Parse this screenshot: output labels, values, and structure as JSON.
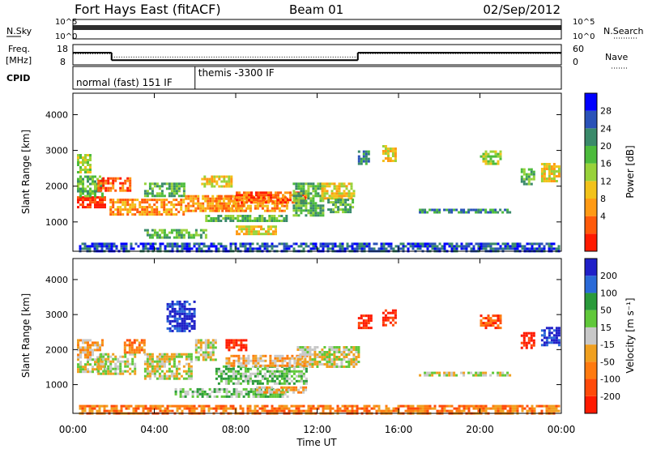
{
  "header": {
    "station": "Fort Hays East (fitACF)",
    "beam": "Beam 01",
    "date": "02/Sep/2012"
  },
  "noise_panel": {
    "left_label": "N.Sky",
    "right_label": "N.Search",
    "left_ticks": [
      "10^5",
      "10^0"
    ],
    "right_ticks": [
      "10^5",
      "10^0"
    ]
  },
  "freq_panel": {
    "left_label_1": "Freq.",
    "left_label_2": "[MHz]",
    "right_label": "Nave",
    "left_ticks": [
      "18",
      "8"
    ],
    "right_ticks": [
      "60",
      "0"
    ],
    "freq_steps": [
      {
        "t0": 0.0,
        "t1": 1.9,
        "value": 14.0
      },
      {
        "t0": 1.9,
        "t1": 14.0,
        "value": 10.3
      },
      {
        "t0": 14.0,
        "t1": 24.0,
        "value": 14.0
      }
    ],
    "nave_steps": [
      {
        "t0": 0.0,
        "t1": 1.9,
        "value": 33
      },
      {
        "t0": 1.9,
        "t1": 14.0,
        "value": 23
      },
      {
        "t0": 14.0,
        "t1": 24.0,
        "value": 33
      }
    ]
  },
  "cpid_panel": {
    "label": "CPID",
    "segments": [
      {
        "t0": 0.0,
        "t1": 6.0,
        "text": "normal (fast) 151 IF"
      },
      {
        "t0": 6.0,
        "t1": 24.0,
        "text": "themis -3300 IF"
      }
    ]
  },
  "x_axis": {
    "label": "Time UT",
    "ticks": [
      "00:00",
      "04:00",
      "08:00",
      "12:00",
      "16:00",
      "20:00",
      "00:00"
    ]
  },
  "chart_data": [
    {
      "type": "heatmap",
      "name": "power",
      "ylabel": "Slant Range [km]",
      "yticks": [
        "1000",
        "2000",
        "3000",
        "4000"
      ],
      "ylim": [
        180,
        4600
      ],
      "xlim": [
        0,
        24
      ],
      "colorbar": {
        "label": "Power [dB]",
        "tick_labels": [
          "4",
          "8",
          "12",
          "16",
          "20",
          "24",
          "28"
        ],
        "colors": [
          "#0000ff",
          "#2a52b8",
          "#3a8a6a",
          "#4cbb3c",
          "#98d23a",
          "#f2c21a",
          "#ff9a14",
          "#ff5a0a",
          "#ff1a00"
        ]
      },
      "regions": [
        {
          "t0": 0.2,
          "t1": 1.6,
          "r0": 1420,
          "r1": 1720,
          "level": 8
        },
        {
          "t0": 0.2,
          "t1": 1.4,
          "r0": 1750,
          "r1": 2300,
          "level": 3
        },
        {
          "t0": 1.2,
          "t1": 2.8,
          "r0": 1900,
          "r1": 2250,
          "level": 7
        },
        {
          "t0": 1.8,
          "t1": 5.5,
          "r0": 1200,
          "r1": 1650,
          "level": 6
        },
        {
          "t0": 3.5,
          "t1": 5.5,
          "r0": 1700,
          "r1": 2100,
          "level": 3
        },
        {
          "t0": 5.5,
          "t1": 8.5,
          "r0": 1300,
          "r1": 1750,
          "level": 6
        },
        {
          "t0": 6.3,
          "t1": 7.8,
          "r0": 2000,
          "r1": 2300,
          "level": 5
        },
        {
          "t0": 7.0,
          "t1": 10.5,
          "r0": 1300,
          "r1": 1750,
          "level": 6
        },
        {
          "t0": 8.0,
          "t1": 11.5,
          "r0": 1550,
          "r1": 1850,
          "level": 7
        },
        {
          "t0": 3.5,
          "t1": 6.5,
          "r0": 580,
          "r1": 800,
          "level": 3
        },
        {
          "t0": 8.0,
          "t1": 10.0,
          "r0": 650,
          "r1": 900,
          "level": 5
        },
        {
          "t0": 6.5,
          "t1": 10.5,
          "r0": 1000,
          "r1": 1200,
          "level": 3
        },
        {
          "t0": 0.2,
          "t1": 0.9,
          "r0": 2400,
          "r1": 2900,
          "level": 4
        },
        {
          "t0": 10.8,
          "t1": 12.3,
          "r0": 1150,
          "r1": 2100,
          "level": 3
        },
        {
          "t0": 12.2,
          "t1": 13.8,
          "r0": 1650,
          "r1": 2100,
          "level": 5
        },
        {
          "t0": 12.5,
          "t1": 13.8,
          "r0": 1300,
          "r1": 1650,
          "level": 3
        },
        {
          "t0": 14.0,
          "t1": 14.5,
          "r0": 2600,
          "r1": 3000,
          "level": 2
        },
        {
          "t0": 15.2,
          "t1": 15.8,
          "r0": 2700,
          "r1": 3150,
          "level": 5
        },
        {
          "t0": 17.0,
          "t1": 21.5,
          "r0": 1280,
          "r1": 1370,
          "level": 2
        },
        {
          "t0": 20.0,
          "t1": 21.0,
          "r0": 2650,
          "r1": 3000,
          "level": 4
        },
        {
          "t0": 22.0,
          "t1": 22.6,
          "r0": 2050,
          "r1": 2500,
          "level": 3
        },
        {
          "t0": 23.0,
          "t1": 23.9,
          "r0": 2150,
          "r1": 2650,
          "level": 5
        },
        {
          "t0": 0.3,
          "t1": 23.9,
          "r0": 200,
          "r1": 420,
          "level": 1
        }
      ]
    },
    {
      "type": "heatmap",
      "name": "velocity",
      "ylabel": "Slant Range [km]",
      "yticks": [
        "1000",
        "2000",
        "3000",
        "4000"
      ],
      "ylim": [
        180,
        4600
      ],
      "xlim": [
        0,
        24
      ],
      "colorbar": {
        "label": "Velocity [m s⁻¹]",
        "tick_labels": [
          "200",
          "100",
          "50",
          "15",
          "-15",
          "-50",
          "-100",
          "-200"
        ],
        "colors": [
          "#2020c8",
          "#2a6ad8",
          "#2a9a3a",
          "#60c83a",
          "#c8c8c8",
          "#f0a020",
          "#ff7a10",
          "#ff4a0a",
          "#ff1a00"
        ]
      },
      "regions": [
        {
          "t0": 0.2,
          "t1": 1.6,
          "r0": 1400,
          "r1": 1750,
          "level": 4
        },
        {
          "t0": 0.2,
          "t1": 1.4,
          "r0": 1750,
          "r1": 2300,
          "level": 5
        },
        {
          "t0": 1.2,
          "t1": 3.0,
          "r0": 1300,
          "r1": 1900,
          "level": 4
        },
        {
          "t0": 2.5,
          "t1": 3.5,
          "r0": 1900,
          "r1": 2300,
          "level": 6
        },
        {
          "t0": 3.5,
          "t1": 5.8,
          "r0": 1200,
          "r1": 1900,
          "level": 4
        },
        {
          "t0": 4.6,
          "t1": 6.0,
          "r0": 2500,
          "r1": 3400,
          "level": 0
        },
        {
          "t0": 6.0,
          "t1": 7.0,
          "r0": 1700,
          "r1": 2300,
          "level": 4
        },
        {
          "t0": 7.5,
          "t1": 8.5,
          "r0": 2000,
          "r1": 2300,
          "level": 8
        },
        {
          "t0": 7.0,
          "t1": 11.5,
          "r0": 1000,
          "r1": 1550,
          "level": 3
        },
        {
          "t0": 7.5,
          "t1": 11.5,
          "r0": 1550,
          "r1": 1850,
          "level": 5
        },
        {
          "t0": 11.0,
          "t1": 14.0,
          "r0": 1500,
          "r1": 2100,
          "level": 4
        },
        {
          "t0": 5.0,
          "t1": 10.5,
          "r0": 650,
          "r1": 900,
          "level": 3
        },
        {
          "t0": 9.0,
          "t1": 11.5,
          "r0": 750,
          "r1": 950,
          "level": 5
        },
        {
          "t0": 14.0,
          "t1": 14.6,
          "r0": 2600,
          "r1": 3000,
          "level": 8
        },
        {
          "t0": 15.2,
          "t1": 15.8,
          "r0": 2700,
          "r1": 3150,
          "level": 8
        },
        {
          "t0": 17.0,
          "t1": 21.5,
          "r0": 1280,
          "r1": 1370,
          "level": 4
        },
        {
          "t0": 20.0,
          "t1": 21.0,
          "r0": 2600,
          "r1": 3000,
          "level": 7
        },
        {
          "t0": 22.0,
          "t1": 22.6,
          "r0": 2050,
          "r1": 2500,
          "level": 8
        },
        {
          "t0": 23.0,
          "t1": 23.9,
          "r0": 2150,
          "r1": 2650,
          "level": 0
        },
        {
          "t0": 0.3,
          "t1": 23.9,
          "r0": 200,
          "r1": 420,
          "level": 6
        }
      ]
    }
  ]
}
